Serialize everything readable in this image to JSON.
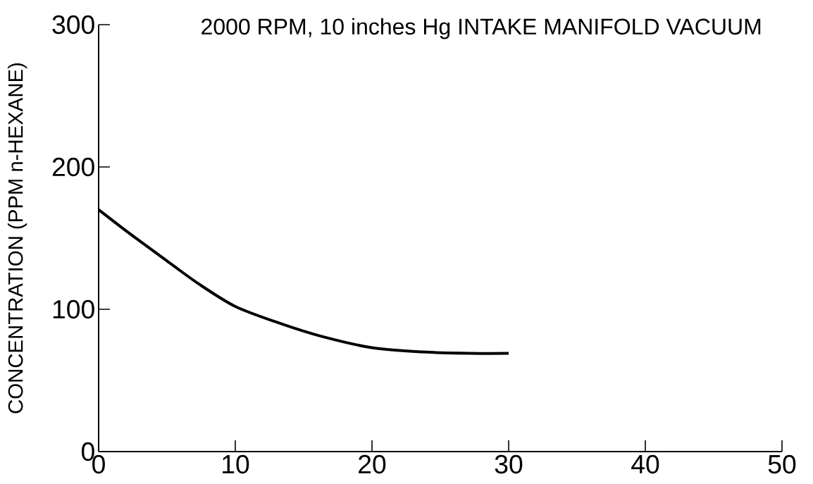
{
  "chart_data": {
    "type": "line",
    "title": "2000 RPM, 10 inches Hg  INTAKE MANIFOLD VACUUM",
    "ylabel": "CONCENTRATION (PPM n-HEXANE)",
    "x": [
      0,
      2.3,
      5,
      7.3,
      10,
      13.3,
      16.3,
      20,
      23.7,
      27.1,
      30
    ],
    "series": [
      {
        "color": "#000000",
        "values": [
          170,
          153,
          134,
          118,
          102,
          90,
          81,
          73,
          70,
          69,
          69
        ]
      }
    ],
    "xlim": [
      0,
      50
    ],
    "ylim": [
      0,
      300
    ],
    "xticks": [
      0,
      10,
      20,
      30,
      40,
      50
    ],
    "yticks": [
      0,
      100,
      200,
      300
    ],
    "grid": false,
    "marker": "none",
    "line_style": "solid"
  }
}
